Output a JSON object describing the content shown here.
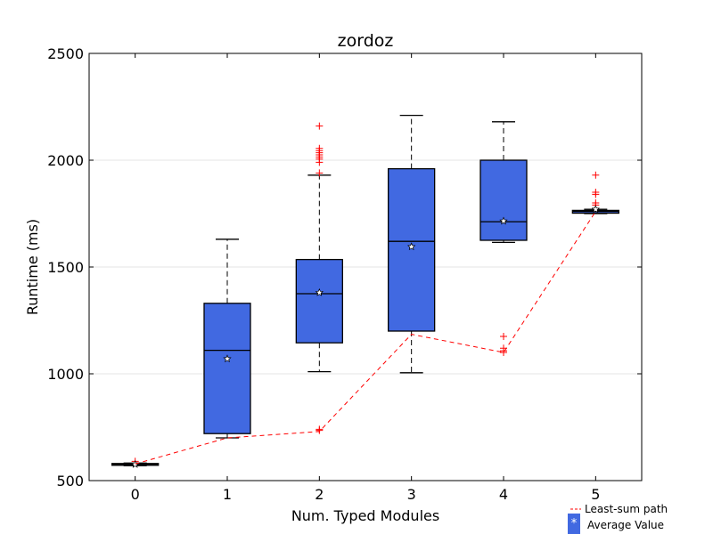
{
  "chart_data": {
    "type": "box",
    "title": "zordoz",
    "xlabel": "Num. Typed Modules",
    "ylabel": "Runtime (ms)",
    "categories": [
      "0",
      "1",
      "2",
      "3",
      "4",
      "5"
    ],
    "ylim": [
      500,
      2500
    ],
    "yticks": [
      500,
      1000,
      1500,
      2000,
      2500
    ],
    "grid": "horizontal",
    "box_color": "#4169e1",
    "outlier_color": "#ff0000",
    "path_color": "#ff0000",
    "boxes": [
      {
        "x": 0,
        "whislo": 570,
        "q1": 572,
        "med": 576,
        "q3": 580,
        "whishi": 582,
        "mean": 576,
        "fliers": [
          590
        ]
      },
      {
        "x": 1,
        "whislo": 700,
        "q1": 720,
        "med": 1110,
        "q3": 1330,
        "whishi": 1630,
        "mean": 1070,
        "fliers": []
      },
      {
        "x": 2,
        "whislo": 1010,
        "q1": 1145,
        "med": 1375,
        "q3": 1535,
        "whishi": 1930,
        "mean": 1380,
        "fliers": [
          1940,
          1990,
          2005,
          2015,
          2025,
          2035,
          2045,
          2055,
          2160,
          735,
          740
        ]
      },
      {
        "x": 3,
        "whislo": 1005,
        "q1": 1200,
        "med": 1620,
        "q3": 1960,
        "whishi": 2210,
        "mean": 1595,
        "fliers": []
      },
      {
        "x": 4,
        "whislo": 1615,
        "q1": 1625,
        "med": 1712,
        "q3": 2000,
        "whishi": 2180,
        "mean": 1715,
        "fliers": [
          1175,
          1120,
          1108,
          1100
        ]
      },
      {
        "x": 5,
        "whislo": 1750,
        "q1": 1752,
        "med": 1760,
        "q3": 1765,
        "whishi": 1770,
        "mean": 1770,
        "fliers": [
          1790,
          1800,
          1840,
          1850,
          1930
        ]
      }
    ],
    "least_sum_path": {
      "name": "Least-sum path",
      "x": [
        0,
        1,
        2,
        3,
        4,
        5
      ],
      "y": [
        578,
        700,
        730,
        1185,
        1100,
        1760
      ]
    },
    "legend": [
      {
        "label": "Least-sum path",
        "style": "dashed-line"
      },
      {
        "label": "Average Value",
        "style": "star-marker"
      }
    ],
    "legend_position": "below-right"
  }
}
